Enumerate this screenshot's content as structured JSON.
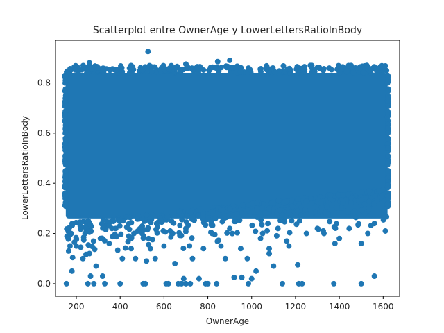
{
  "chart_data": {
    "type": "scatter",
    "title": "Scatterplot entre OwnerAge y LowerLettersRatioInBody",
    "xlabel": "OwnerAge",
    "ylabel": "LowerLettersRatioInBody",
    "xlim": [
      105,
      1675
    ],
    "ylim": [
      -0.05,
      0.97
    ],
    "xticks": [
      200,
      400,
      600,
      800,
      1000,
      1200,
      1400,
      1600
    ],
    "yticks": [
      0.0,
      0.2,
      0.4,
      0.6,
      0.8
    ],
    "ytick_labels": [
      "0.0",
      "0.2",
      "0.4",
      "0.6",
      "0.8"
    ],
    "grid": false,
    "marker_color": "#1f77b4",
    "dense_region": {
      "x_range": [
        152,
        1620
      ],
      "y_range": [
        0.26,
        0.84
      ]
    },
    "points": [
      [
        527,
        0.925
      ],
      [
        260,
        0.88
      ],
      [
        900,
        0.89
      ],
      [
        845,
        0.885
      ],
      [
        700,
        0.875
      ],
      [
        300,
        0.86
      ],
      [
        155,
        0.0
      ],
      [
        253,
        0.0
      ],
      [
        280,
        0.0
      ],
      [
        330,
        0.0
      ],
      [
        400,
        0.0
      ],
      [
        505,
        0.0
      ],
      [
        515,
        0.0
      ],
      [
        610,
        0.0
      ],
      [
        620,
        0.0
      ],
      [
        665,
        0.0
      ],
      [
        680,
        0.0
      ],
      [
        700,
        0.0
      ],
      [
        720,
        0.0
      ],
      [
        790,
        0.0
      ],
      [
        800,
        0.0
      ],
      [
        840,
        0.0
      ],
      [
        985,
        0.0
      ],
      [
        1140,
        0.0
      ],
      [
        1215,
        0.0
      ],
      [
        1230,
        0.0
      ],
      [
        1375,
        0.0
      ],
      [
        1500,
        0.0
      ],
      [
        265,
        0.03
      ],
      [
        320,
        0.03
      ],
      [
        690,
        0.02
      ],
      [
        760,
        0.02
      ],
      [
        920,
        0.025
      ],
      [
        955,
        0.025
      ],
      [
        1000,
        0.02
      ],
      [
        1560,
        0.03
      ],
      [
        1210,
        0.075
      ],
      [
        180,
        0.05
      ],
      [
        230,
        0.1
      ],
      [
        290,
        0.07
      ],
      [
        410,
        0.1
      ],
      [
        470,
        0.1
      ],
      [
        520,
        0.09
      ],
      [
        560,
        0.1
      ],
      [
        650,
        0.08
      ],
      [
        730,
        0.1
      ],
      [
        880,
        0.1
      ],
      [
        980,
        0.1
      ],
      [
        1020,
        0.05
      ],
      [
        1100,
        0.07
      ],
      [
        165,
        0.13
      ],
      [
        200,
        0.15
      ],
      [
        260,
        0.12
      ],
      [
        350,
        0.16
      ],
      [
        450,
        0.14
      ],
      [
        600,
        0.15
      ],
      [
        780,
        0.14
      ],
      [
        860,
        0.15
      ],
      [
        950,
        0.14
      ],
      [
        1080,
        0.12
      ],
      [
        1170,
        0.15
      ],
      [
        1380,
        0.16
      ],
      [
        1400,
        0.18
      ],
      [
        1500,
        0.16
      ],
      [
        1160,
        0.17
      ],
      [
        1080,
        0.14
      ],
      [
        1330,
        0.2
      ],
      [
        1445,
        0.22
      ],
      [
        1530,
        0.2
      ],
      [
        1560,
        0.24
      ],
      [
        1610,
        0.21
      ],
      [
        170,
        0.2
      ],
      [
        240,
        0.2
      ],
      [
        310,
        0.18
      ],
      [
        380,
        0.22
      ],
      [
        500,
        0.2
      ],
      [
        640,
        0.2
      ],
      [
        700,
        0.22
      ],
      [
        820,
        0.2
      ],
      [
        900,
        0.22
      ],
      [
        1050,
        0.2
      ],
      [
        1120,
        0.22
      ],
      [
        1250,
        0.2
      ],
      [
        1300,
        0.22
      ]
    ]
  }
}
